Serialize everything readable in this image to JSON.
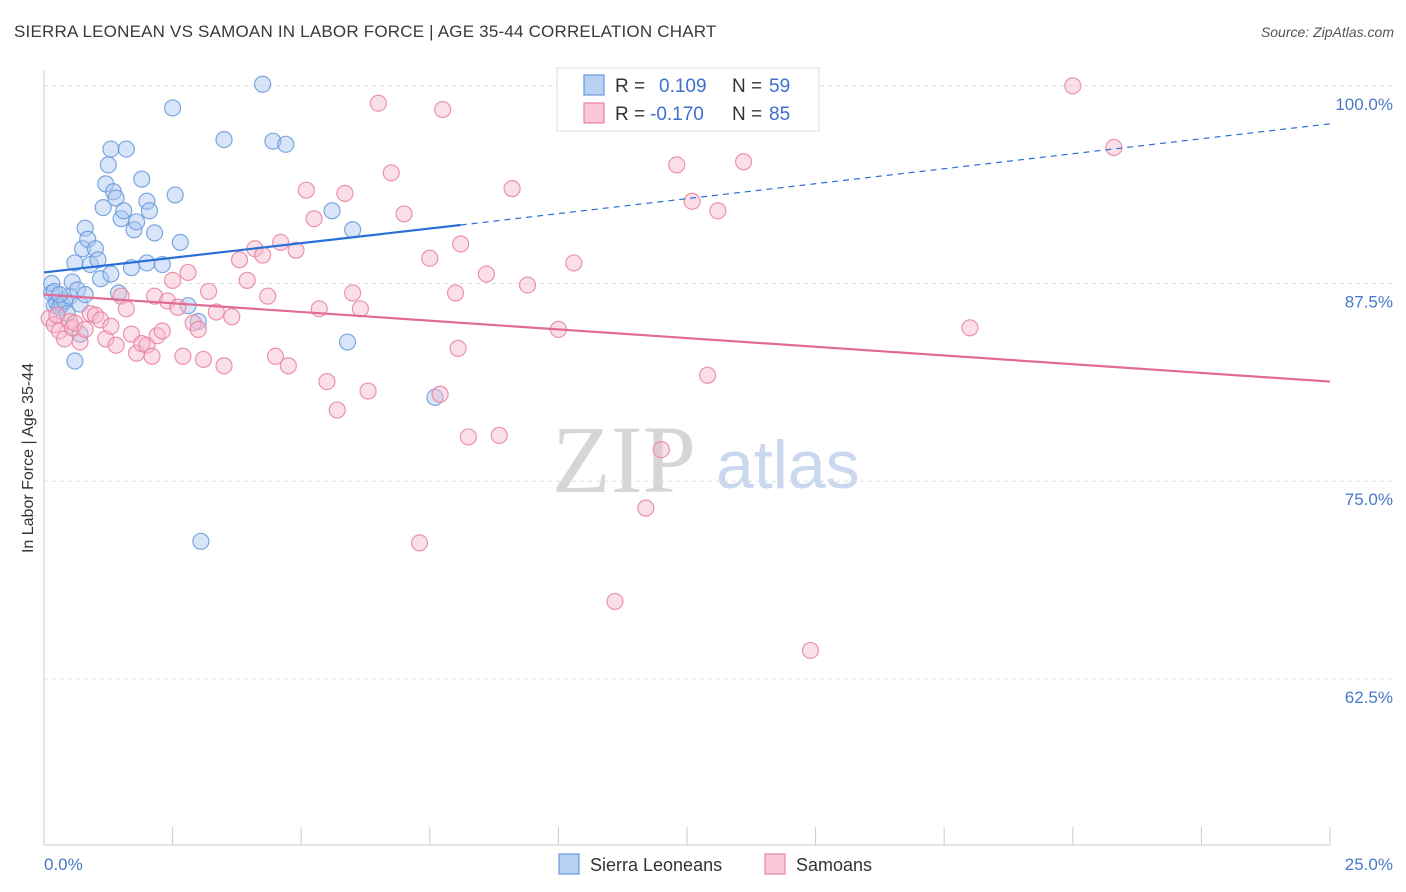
{
  "chart_data": {
    "type": "scatter",
    "title": "SIERRA LEONEAN VS SAMOAN IN LABOR FORCE | AGE 35-44 CORRELATION CHART",
    "source": "Source: ZipAtlas.com",
    "ylabel": "In Labor Force | Age 35-44",
    "xlim": [
      0,
      25
    ],
    "ylim": [
      52,
      101
    ],
    "x_tick_labels": {
      "left": "0.0%",
      "right": "25.0%"
    },
    "y_ticks": [
      {
        "value": 100,
        "label": "100.0%"
      },
      {
        "value": 87.5,
        "label": "87.5%"
      },
      {
        "value": 75,
        "label": "75.0%"
      },
      {
        "value": 62.5,
        "label": "62.5%"
      }
    ],
    "legend": {
      "r_label": "R =",
      "n_label": "N =",
      "rows": [
        {
          "r": "0.109",
          "n": "59"
        },
        {
          "r": "-0.170",
          "n": "85"
        }
      ]
    },
    "watermark": {
      "zip": "ZIP",
      "atlas": "atlas"
    },
    "series": [
      {
        "name": "Sierra Leoneans",
        "color": "#6699dd",
        "fill": "#a9c6f0",
        "trend": {
          "x0": 0,
          "y0": 88.2,
          "x1": 8.1,
          "y1": 91.2,
          "dash_to_x": 25,
          "dash_to_y": 97.6
        },
        "points": [
          [
            0.15,
            86.9
          ],
          [
            0.2,
            86.1
          ],
          [
            0.25,
            86.3
          ],
          [
            0.3,
            86.0
          ],
          [
            0.35,
            86.2
          ],
          [
            0.4,
            86.4
          ],
          [
            0.45,
            85.6
          ],
          [
            0.5,
            86.7
          ],
          [
            0.55,
            87.6
          ],
          [
            0.6,
            88.8
          ],
          [
            0.65,
            87.1
          ],
          [
            0.7,
            86.2
          ],
          [
            0.75,
            89.7
          ],
          [
            0.8,
            91.0
          ],
          [
            0.85,
            90.3
          ],
          [
            0.9,
            88.7
          ],
          [
            1.0,
            89.7
          ],
          [
            1.05,
            89.0
          ],
          [
            1.1,
            87.8
          ],
          [
            1.15,
            92.3
          ],
          [
            1.2,
            93.8
          ],
          [
            1.25,
            95.0
          ],
          [
            1.3,
            96.0
          ],
          [
            1.35,
            93.3
          ],
          [
            1.4,
            92.9
          ],
          [
            1.45,
            86.9
          ],
          [
            1.5,
            91.6
          ],
          [
            1.55,
            92.1
          ],
          [
            1.6,
            96.0
          ],
          [
            1.7,
            88.5
          ],
          [
            1.75,
            90.9
          ],
          [
            1.8,
            91.4
          ],
          [
            1.9,
            94.1
          ],
          [
            2.0,
            92.7
          ],
          [
            2.05,
            92.1
          ],
          [
            2.15,
            90.7
          ],
          [
            2.3,
            88.7
          ],
          [
            2.5,
            98.6
          ],
          [
            2.55,
            93.1
          ],
          [
            2.65,
            90.1
          ],
          [
            2.8,
            86.1
          ],
          [
            3.05,
            71.2
          ],
          [
            3.5,
            96.6
          ],
          [
            4.25,
            100.1
          ],
          [
            4.45,
            96.5
          ],
          [
            4.7,
            96.3
          ],
          [
            5.6,
            92.1
          ],
          [
            6.0,
            90.9
          ],
          [
            5.9,
            83.8
          ],
          [
            7.6,
            80.3
          ],
          [
            0.15,
            87.5
          ],
          [
            0.2,
            87.0
          ],
          [
            0.3,
            86.8
          ],
          [
            0.6,
            82.6
          ],
          [
            0.7,
            84.3
          ],
          [
            0.8,
            86.8
          ],
          [
            1.3,
            88.1
          ],
          [
            2.0,
            88.8
          ],
          [
            3.0,
            85.1
          ]
        ]
      },
      {
        "name": "Samoans",
        "color": "#e8819f",
        "fill": "#f6b9cb",
        "trend": {
          "x0": 0,
          "y0": 86.8,
          "x1": 25,
          "y1": 81.3
        },
        "points": [
          [
            0.1,
            85.3
          ],
          [
            0.2,
            84.9
          ],
          [
            0.25,
            85.5
          ],
          [
            0.3,
            84.5
          ],
          [
            0.4,
            84.0
          ],
          [
            0.5,
            85.1
          ],
          [
            0.55,
            84.7
          ],
          [
            0.6,
            85.0
          ],
          [
            0.7,
            83.8
          ],
          [
            0.8,
            84.6
          ],
          [
            0.9,
            85.6
          ],
          [
            1.0,
            85.5
          ],
          [
            1.1,
            85.2
          ],
          [
            1.2,
            84.0
          ],
          [
            1.3,
            84.8
          ],
          [
            1.4,
            83.6
          ],
          [
            1.5,
            86.7
          ],
          [
            1.6,
            85.9
          ],
          [
            1.7,
            84.3
          ],
          [
            1.8,
            83.1
          ],
          [
            1.9,
            83.7
          ],
          [
            2.0,
            83.6
          ],
          [
            2.1,
            82.9
          ],
          [
            2.15,
            86.7
          ],
          [
            2.2,
            84.2
          ],
          [
            2.3,
            84.5
          ],
          [
            2.4,
            86.4
          ],
          [
            2.5,
            87.7
          ],
          [
            2.6,
            86.0
          ],
          [
            2.7,
            82.9
          ],
          [
            2.8,
            88.2
          ],
          [
            2.9,
            85.0
          ],
          [
            3.0,
            84.6
          ],
          [
            3.1,
            82.7
          ],
          [
            3.2,
            87.0
          ],
          [
            3.35,
            85.7
          ],
          [
            3.5,
            82.3
          ],
          [
            3.65,
            85.4
          ],
          [
            3.8,
            89.0
          ],
          [
            3.95,
            87.7
          ],
          [
            4.1,
            89.7
          ],
          [
            4.25,
            89.3
          ],
          [
            4.35,
            86.7
          ],
          [
            4.5,
            82.9
          ],
          [
            4.6,
            90.1
          ],
          [
            4.75,
            82.3
          ],
          [
            4.9,
            89.6
          ],
          [
            5.1,
            93.4
          ],
          [
            5.25,
            91.6
          ],
          [
            5.35,
            85.9
          ],
          [
            5.5,
            81.3
          ],
          [
            5.7,
            79.5
          ],
          [
            5.85,
            93.2
          ],
          [
            6.0,
            86.9
          ],
          [
            6.15,
            85.9
          ],
          [
            6.3,
            80.7
          ],
          [
            6.5,
            98.9
          ],
          [
            6.75,
            94.5
          ],
          [
            7.0,
            91.9
          ],
          [
            7.3,
            71.1
          ],
          [
            7.5,
            89.1
          ],
          [
            7.7,
            80.5
          ],
          [
            7.75,
            98.5
          ],
          [
            8.0,
            86.9
          ],
          [
            8.05,
            83.4
          ],
          [
            8.1,
            90.0
          ],
          [
            8.25,
            77.8
          ],
          [
            8.6,
            88.1
          ],
          [
            8.85,
            77.9
          ],
          [
            9.1,
            93.5
          ],
          [
            9.4,
            87.4
          ],
          [
            10.0,
            84.6
          ],
          [
            10.3,
            88.8
          ],
          [
            11.1,
            67.4
          ],
          [
            11.7,
            73.3
          ],
          [
            12.0,
            77.0
          ],
          [
            12.3,
            95.0
          ],
          [
            12.6,
            92.7
          ],
          [
            12.9,
            81.7
          ],
          [
            13.1,
            92.1
          ],
          [
            13.6,
            95.2
          ],
          [
            14.9,
            64.3
          ],
          [
            18.0,
            84.7
          ],
          [
            20.0,
            100.0
          ],
          [
            20.8,
            96.1
          ]
        ]
      }
    ]
  },
  "bottom_legend": [
    "Sierra Leoneans",
    "Samoans"
  ]
}
